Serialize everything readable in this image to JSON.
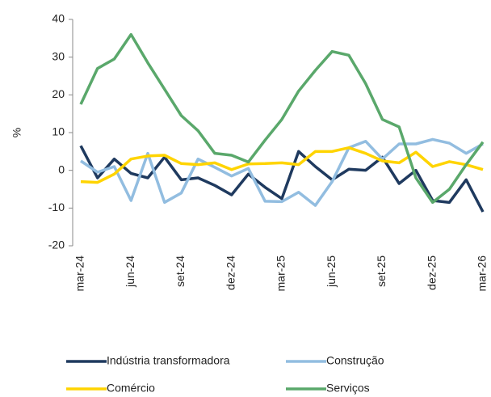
{
  "chart_data": {
    "type": "line",
    "y_label": "%",
    "categories": [
      "mar-24",
      null,
      null,
      "jun-24",
      null,
      null,
      "set-24",
      null,
      null,
      "dez-24",
      null,
      null,
      "mar-25",
      null,
      null,
      "jun-25",
      null,
      null,
      "set-25",
      null,
      null,
      "dez-25",
      null,
      null,
      "mar-26"
    ],
    "series": [
      {
        "name": "Indústria transformadora",
        "color": "#1f3a5f",
        "values": [
          6.5,
          -2,
          3,
          -0.8,
          -2,
          3.5,
          -2.5,
          -2,
          -4,
          -6.5,
          -1,
          -4.5,
          -7.5,
          5,
          1,
          -2.5,
          0.3,
          0,
          3.5,
          -3.5,
          0,
          -8,
          -8.5,
          -2.5,
          -11
        ]
      },
      {
        "name": "Construção",
        "color": "#92bde0",
        "values": [
          2.5,
          -0.5,
          1,
          -8,
          4.5,
          -8.5,
          -6,
          3,
          0.8,
          -1.5,
          0.5,
          -8.2,
          -8.3,
          -5.8,
          -9.3,
          -3,
          6,
          7.7,
          3,
          7,
          7,
          8.2,
          7.2,
          4.5,
          7
        ]
      },
      {
        "name": "Comércio",
        "color": "#ffd400",
        "values": [
          -3,
          -3.2,
          -1,
          3,
          3.8,
          4,
          1.8,
          1.5,
          2,
          0.2,
          1.7,
          1.8,
          2,
          1.5,
          5,
          5,
          6,
          4.5,
          2.5,
          2,
          4.8,
          1,
          2.3,
          1.5,
          0.2
        ]
      },
      {
        "name": "Serviços",
        "color": "#5aa86b",
        "values": [
          17.5,
          27,
          29.5,
          36,
          28.5,
          21.5,
          14.5,
          10.5,
          4.5,
          4,
          2.2,
          8,
          13.5,
          21,
          26.5,
          31.5,
          30.5,
          23,
          13.5,
          11.5,
          -2,
          -8.5,
          -5,
          1.5,
          7.5
        ]
      }
    ],
    "ylim": [
      -20,
      40
    ],
    "yticks": [
      -20,
      -10,
      0,
      10,
      20,
      30,
      40
    ],
    "legend": "bottom"
  }
}
